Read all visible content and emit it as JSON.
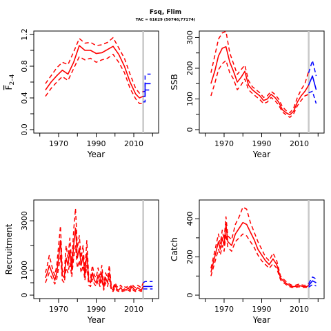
{
  "figure": {
    "title": "Fsq, Flim",
    "subtitle": "TAC = 61629 (50746;77174)"
  },
  "colors": {
    "historical": "#ff0000",
    "projection": "#0000ff",
    "marker": "#c8c8c8"
  },
  "chart_data": [
    {
      "type": "line",
      "xlabel": "Year",
      "ylabel": "F",
      "ylabel_sub": "2–4",
      "xlim": [
        1959,
        2021
      ],
      "ylim": [
        0,
        1.2
      ],
      "xticks": [
        1970,
        1990,
        2010
      ],
      "yticks": [
        0.0,
        0.4,
        0.8,
        1.2
      ],
      "ytick_labels": [
        "0.0",
        "0.4",
        "0.8",
        "1.2"
      ],
      "vline_year": 2015,
      "series": [
        {
          "role": "estimate",
          "x": [
            1963,
            1966,
            1969,
            1972,
            1975,
            1978,
            1981,
            1984,
            1987,
            1990,
            1993,
            1996,
            1999,
            2002,
            2005,
            2008,
            2011,
            2013,
            2015
          ],
          "values": [
            0.5,
            0.6,
            0.68,
            0.75,
            0.7,
            0.85,
            1.06,
            1.0,
            1.0,
            0.96,
            0.97,
            1.01,
            1.05,
            0.95,
            0.8,
            0.6,
            0.45,
            0.4,
            0.42
          ]
        },
        {
          "role": "upper",
          "x": [
            1963,
            1966,
            1969,
            1972,
            1975,
            1978,
            1981,
            1984,
            1987,
            1990,
            1993,
            1996,
            1999,
            2002,
            2005,
            2008,
            2011,
            2013,
            2015
          ],
          "values": [
            0.58,
            0.68,
            0.78,
            0.85,
            0.82,
            0.98,
            1.15,
            1.09,
            1.1,
            1.06,
            1.07,
            1.1,
            1.16,
            1.03,
            0.9,
            0.7,
            0.52,
            0.46,
            0.48
          ]
        },
        {
          "role": "lower",
          "x": [
            1963,
            1966,
            1969,
            1972,
            1975,
            1978,
            1981,
            1984,
            1987,
            1990,
            1993,
            1996,
            1999,
            2002,
            2005,
            2008,
            2011,
            2013,
            2015
          ],
          "values": [
            0.42,
            0.52,
            0.6,
            0.67,
            0.62,
            0.77,
            0.92,
            0.88,
            0.9,
            0.85,
            0.88,
            0.9,
            0.95,
            0.85,
            0.72,
            0.52,
            0.39,
            0.33,
            0.33
          ]
        },
        {
          "role": "projection",
          "x": [
            2015,
            2016,
            2016,
            2019
          ],
          "values": [
            0.42,
            0.42,
            0.58,
            0.58
          ]
        },
        {
          "role": "projection-upper",
          "x": [
            2015,
            2016,
            2016,
            2017,
            2019
          ],
          "values": [
            0.48,
            0.48,
            0.68,
            0.7,
            0.7
          ]
        },
        {
          "role": "projection-lower",
          "x": [
            2015,
            2016,
            2016,
            2019
          ],
          "values": [
            0.35,
            0.35,
            0.5,
            0.5
          ]
        }
      ]
    },
    {
      "type": "line",
      "xlabel": "Year",
      "ylabel": "SSB",
      "xlim": [
        1959,
        2021
      ],
      "ylim": [
        0,
        310
      ],
      "xticks": [
        1970,
        1990,
        2010
      ],
      "yticks": [
        0,
        100,
        200,
        300
      ],
      "ytick_labels": [
        "0",
        "100",
        "200",
        "300"
      ],
      "vline_year": 2015,
      "series": [
        {
          "role": "estimate",
          "x": [
            1963,
            1965,
            1967,
            1969,
            1971,
            1973,
            1975,
            1977,
            1979,
            1981,
            1983,
            1985,
            1987,
            1989,
            1991,
            1993,
            1995,
            1997,
            1999,
            2001,
            2003,
            2005,
            2007,
            2009,
            2011,
            2013,
            2015
          ],
          "values": [
            150,
            190,
            240,
            265,
            270,
            220,
            190,
            155,
            170,
            190,
            145,
            130,
            120,
            110,
            95,
            100,
            115,
            105,
            90,
            65,
            55,
            48,
            60,
            90,
            110,
            125,
            145
          ]
        },
        {
          "role": "upper",
          "x": [
            1963,
            1965,
            1967,
            1969,
            1971,
            1973,
            1975,
            1977,
            1979,
            1981,
            1983,
            1985,
            1987,
            1989,
            1991,
            1993,
            1995,
            1997,
            1999,
            2001,
            2003,
            2005,
            2007,
            2009,
            2011,
            2013,
            2015
          ],
          "values": [
            185,
            240,
            295,
            315,
            320,
            250,
            215,
            180,
            195,
            210,
            160,
            140,
            130,
            120,
            105,
            110,
            125,
            115,
            100,
            75,
            62,
            55,
            70,
            105,
            130,
            150,
            190
          ]
        },
        {
          "role": "lower",
          "x": [
            1963,
            1965,
            1967,
            1969,
            1971,
            1973,
            1975,
            1977,
            1979,
            1981,
            1983,
            1985,
            1987,
            1989,
            1991,
            1993,
            1995,
            1997,
            1999,
            2001,
            2003,
            2005,
            2007,
            2009,
            2011,
            2013,
            2015
          ],
          "values": [
            110,
            150,
            195,
            215,
            225,
            185,
            165,
            130,
            145,
            165,
            130,
            118,
            108,
            98,
            85,
            90,
            105,
            95,
            80,
            58,
            48,
            40,
            52,
            78,
            95,
            110,
            115
          ]
        },
        {
          "role": "projection",
          "x": [
            2015,
            2017,
            2019
          ],
          "values": [
            145,
            175,
            130
          ]
        },
        {
          "role": "projection-upper",
          "x": [
            2015,
            2017,
            2019
          ],
          "values": [
            185,
            225,
            175
          ]
        },
        {
          "role": "projection-lower",
          "x": [
            2015,
            2017,
            2019
          ],
          "values": [
            120,
            125,
            85
          ]
        }
      ]
    },
    {
      "type": "line",
      "xlabel": "Year",
      "ylabel": "Recruitment",
      "xlim": [
        1959,
        2021
      ],
      "ylim": [
        0,
        3700
      ],
      "xticks": [
        1970,
        1990,
        2010
      ],
      "yticks": [
        0,
        1000,
        3000
      ],
      "ytick_labels": [
        "0",
        "1000",
        "3000"
      ],
      "vline_year": 2015,
      "series": [
        {
          "role": "estimate",
          "x": [
            1963,
            1964,
            1965,
            1966,
            1967,
            1968,
            1969,
            1970,
            1971,
            1972,
            1973,
            1974,
            1975,
            1976,
            1977,
            1978,
            1979,
            1980,
            1981,
            1982,
            1983,
            1984,
            1985,
            1986,
            1987,
            1988,
            1989,
            1990,
            1991,
            1992,
            1993,
            1994,
            1995,
            1996,
            1997,
            1998,
            1999,
            2000,
            2001,
            2002,
            2003,
            2004,
            2005,
            2006,
            2007,
            2008,
            2009,
            2010,
            2011,
            2012,
            2013,
            2014,
            2015
          ],
          "values": [
            700,
            900,
            1200,
            1000,
            800,
            600,
            900,
            1500,
            2200,
            800,
            700,
            1500,
            1200,
            1800,
            1000,
            2000,
            2700,
            1500,
            1900,
            1200,
            1600,
            800,
            1700,
            600,
            500,
            900,
            600,
            500,
            800,
            500,
            900,
            300,
            700,
            500,
            900,
            300,
            200,
            400,
            250,
            200,
            300,
            200,
            250,
            200,
            300,
            200,
            350,
            250,
            200,
            300,
            250,
            200,
            350
          ]
        },
        {
          "role": "upper",
          "x": [
            1963,
            1964,
            1965,
            1966,
            1967,
            1968,
            1969,
            1970,
            1971,
            1972,
            1973,
            1974,
            1975,
            1976,
            1977,
            1978,
            1979,
            1980,
            1981,
            1982,
            1983,
            1984,
            1985,
            1986,
            1987,
            1988,
            1989,
            1990,
            1991,
            1992,
            1993,
            1994,
            1995,
            1996,
            1997,
            1998,
            1999,
            2000,
            2001,
            2002,
            2003,
            2004,
            2005,
            2006,
            2007,
            2008,
            2009,
            2010,
            2011,
            2012,
            2013,
            2014,
            2015
          ],
          "values": [
            900,
            1200,
            1600,
            1300,
            1000,
            800,
            1200,
            2000,
            2800,
            1000,
            900,
            2000,
            1500,
            2300,
            1300,
            2600,
            3500,
            1900,
            2400,
            1500,
            2000,
            1000,
            2200,
            800,
            700,
            1200,
            800,
            700,
            1100,
            700,
            1200,
            400,
            900,
            700,
            1200,
            400,
            300,
            500,
            350,
            300,
            400,
            300,
            350,
            300,
            400,
            300,
            450,
            350,
            300,
            400,
            350,
            300,
            500
          ]
        },
        {
          "role": "lower",
          "x": [
            1963,
            1964,
            1965,
            1966,
            1967,
            1968,
            1969,
            1970,
            1971,
            1972,
            1973,
            1974,
            1975,
            1976,
            1977,
            1978,
            1979,
            1980,
            1981,
            1982,
            1983,
            1984,
            1985,
            1986,
            1987,
            1988,
            1989,
            1990,
            1991,
            1992,
            1993,
            1994,
            1995,
            1996,
            1997,
            1998,
            1999,
            2000,
            2001,
            2002,
            2003,
            2004,
            2005,
            2006,
            2007,
            2008,
            2009,
            2010,
            2011,
            2012,
            2013,
            2014,
            2015
          ],
          "values": [
            500,
            700,
            900,
            750,
            600,
            450,
            650,
            1100,
            1600,
            600,
            500,
            1100,
            900,
            1300,
            750,
            1500,
            2000,
            1100,
            1400,
            900,
            1200,
            600,
            1200,
            400,
            350,
            650,
            450,
            350,
            600,
            350,
            650,
            200,
            500,
            350,
            650,
            200,
            150,
            300,
            180,
            150,
            200,
            150,
            180,
            150,
            200,
            150,
            250,
            180,
            150,
            200,
            180,
            150,
            250
          ]
        },
        {
          "role": "projection",
          "x": [
            2015,
            2016,
            2020
          ],
          "values": [
            350,
            350,
            350
          ]
        },
        {
          "role": "projection-upper",
          "x": [
            2015,
            2016,
            2020
          ],
          "values": [
            500,
            550,
            550
          ]
        },
        {
          "role": "projection-lower",
          "x": [
            2015,
            2016,
            2020
          ],
          "values": [
            250,
            250,
            250
          ]
        }
      ]
    },
    {
      "type": "line",
      "xlabel": "Year",
      "ylabel": "Catch",
      "xlim": [
        1959,
        2021
      ],
      "ylim": [
        0,
        480
      ],
      "xticks": [
        1970,
        1990,
        2010
      ],
      "yticks": [
        0,
        200,
        400
      ],
      "ytick_labels": [
        "0",
        "200",
        "400"
      ],
      "vline_year": 2015,
      "series": [
        {
          "role": "estimate",
          "x": [
            1963,
            1965,
            1967,
            1968,
            1969,
            1970,
            1971,
            1972,
            1974,
            1976,
            1978,
            1980,
            1982,
            1984,
            1986,
            1988,
            1990,
            1992,
            1994,
            1996,
            1998,
            2000,
            2002,
            2004,
            2006,
            2008,
            2010,
            2012,
            2014,
            2015
          ],
          "values": [
            120,
            200,
            280,
            240,
            300,
            260,
            370,
            280,
            260,
            320,
            350,
            380,
            370,
            330,
            290,
            240,
            210,
            180,
            160,
            190,
            160,
            90,
            70,
            55,
            45,
            45,
            50,
            45,
            45,
            50
          ]
        },
        {
          "role": "upper",
          "x": [
            1963,
            1965,
            1967,
            1968,
            1969,
            1970,
            1971,
            1972,
            1974,
            1976,
            1978,
            1980,
            1982,
            1984,
            1986,
            1988,
            1990,
            1992,
            1994,
            1996,
            1998,
            2000,
            2002,
            2004,
            2006,
            2008,
            2010,
            2012,
            2014,
            2015
          ],
          "values": [
            140,
            230,
            320,
            270,
            340,
            290,
            410,
            310,
            290,
            370,
            410,
            460,
            450,
            380,
            330,
            280,
            240,
            200,
            180,
            220,
            180,
            100,
            80,
            62,
            52,
            52,
            58,
            52,
            52,
            60
          ]
        },
        {
          "role": "lower",
          "x": [
            1963,
            1965,
            1967,
            1968,
            1969,
            1970,
            1971,
            1972,
            1974,
            1976,
            1978,
            1980,
            1982,
            1984,
            1986,
            1988,
            1990,
            1992,
            1994,
            1996,
            1998,
            2000,
            2002,
            2004,
            2006,
            2008,
            2010,
            2012,
            2014,
            2015
          ],
          "values": [
            100,
            170,
            240,
            210,
            260,
            230,
            320,
            250,
            230,
            280,
            300,
            320,
            310,
            280,
            250,
            210,
            180,
            160,
            140,
            165,
            140,
            80,
            62,
            48,
            40,
            40,
            44,
            40,
            40,
            42
          ]
        },
        {
          "role": "projection",
          "x": [
            2015,
            2017,
            2019
          ],
          "values": [
            50,
            75,
            65
          ]
        },
        {
          "role": "projection-upper",
          "x": [
            2015,
            2017,
            2019
          ],
          "values": [
            60,
            95,
            85
          ]
        },
        {
          "role": "projection-lower",
          "x": [
            2015,
            2017,
            2019
          ],
          "values": [
            42,
            55,
            48
          ]
        }
      ]
    }
  ]
}
